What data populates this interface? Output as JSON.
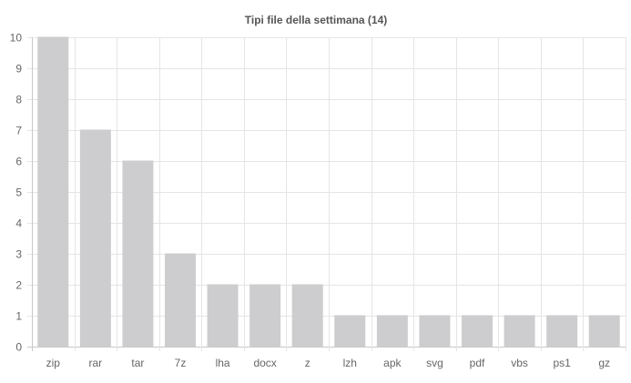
{
  "chart_data": {
    "type": "bar",
    "title": "Tipi file della settimana (14)",
    "categories": [
      "zip",
      "rar",
      "tar",
      "7z",
      "lha",
      "docx",
      "z",
      "lzh",
      "apk",
      "svg",
      "pdf",
      "vbs",
      "ps1",
      "gz"
    ],
    "values": [
      10,
      7,
      6,
      3,
      2,
      2,
      2,
      1,
      1,
      1,
      1,
      1,
      1,
      1
    ],
    "xlabel": "",
    "ylabel": "",
    "ylim": [
      0,
      10
    ],
    "yticks": [
      "0",
      "1",
      "2",
      "3",
      "4",
      "5",
      "6",
      "7",
      "8",
      "9",
      "10"
    ],
    "grid": true,
    "legend": "none",
    "colors": {
      "bar": "#cdcdcf",
      "bar_border": "#cdcdcf"
    }
  }
}
